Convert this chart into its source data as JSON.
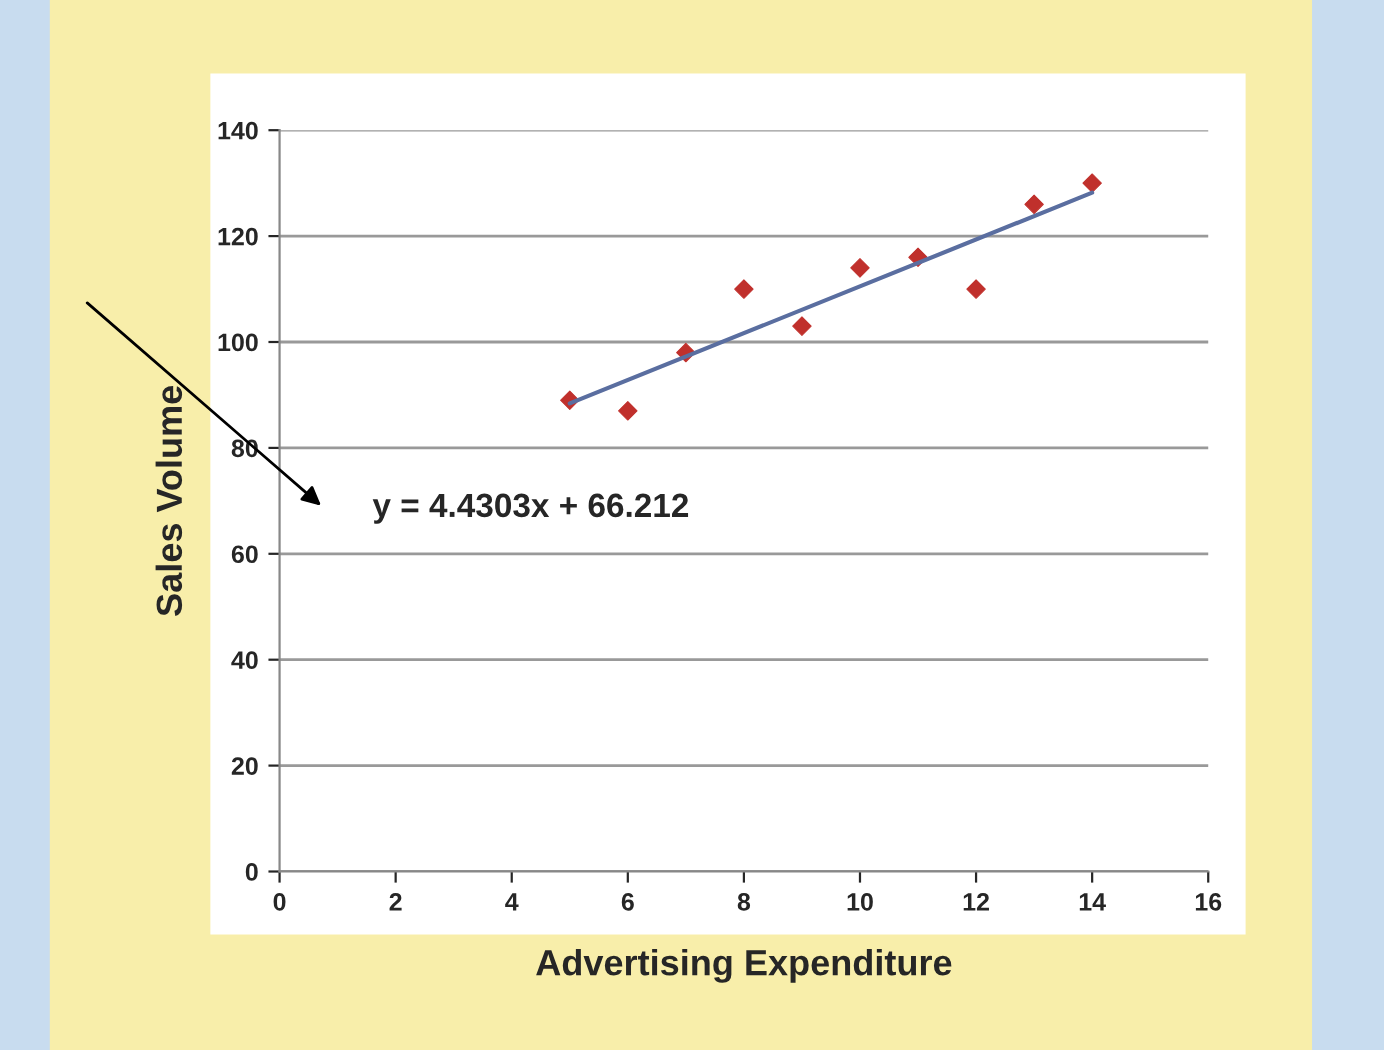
{
  "chart_data": {
    "type": "scatter",
    "xlabel": "Advertising Expenditure",
    "ylabel": "Sales Volume",
    "xlim": [
      0,
      16
    ],
    "xticks": [
      0,
      2,
      4,
      6,
      8,
      10,
      12,
      14,
      16
    ],
    "ylim": [
      0,
      140
    ],
    "yticks": [
      0,
      20,
      40,
      60,
      80,
      100,
      120,
      140
    ],
    "grid": "y",
    "legend": false,
    "series": [
      {
        "marker": "diamond",
        "color": "#c0302c",
        "x": [
          5,
          6,
          7,
          8,
          9,
          10,
          11,
          12,
          13,
          14
        ],
        "values": [
          89,
          87,
          98,
          110,
          103,
          114,
          116,
          110,
          126,
          130
        ]
      },
      {
        "type": "line",
        "color": "#5a6ea0",
        "x": [
          5,
          14
        ],
        "values": [
          88.4,
          128.2
        ]
      }
    ],
    "annotations": [
      "y = 4.4303x + 66.212"
    ]
  }
}
